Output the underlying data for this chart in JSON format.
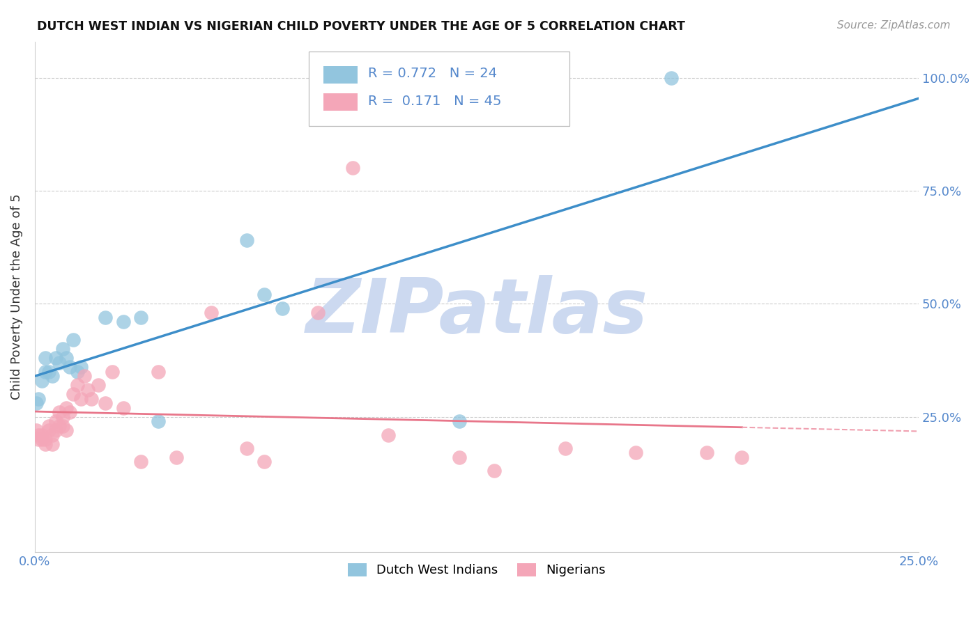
{
  "title": "DUTCH WEST INDIAN VS NIGERIAN CHILD POVERTY UNDER THE AGE OF 5 CORRELATION CHART",
  "source": "Source: ZipAtlas.com",
  "ylabel": "Child Poverty Under the Age of 5",
  "xlim": [
    0.0,
    0.25
  ],
  "ylim": [
    -0.05,
    1.08
  ],
  "background_color": "#ffffff",
  "grid_color": "#cccccc",
  "blue_scatter_color": "#92c5de",
  "pink_scatter_color": "#f4a6b8",
  "blue_line_color": "#3d8ec9",
  "pink_line_color": "#e8768a",
  "pink_dash_color": "#f0a0b0",
  "watermark_color": "#ccd9f0",
  "axis_label_color": "#5588cc",
  "R_blue": 0.772,
  "N_blue": 24,
  "R_pink": 0.171,
  "N_pink": 45,
  "dutch_x": [
    0.0005,
    0.001,
    0.002,
    0.003,
    0.003,
    0.004,
    0.005,
    0.006,
    0.007,
    0.008,
    0.009,
    0.01,
    0.011,
    0.012,
    0.013,
    0.02,
    0.025,
    0.03,
    0.035,
    0.06,
    0.065,
    0.07,
    0.12,
    0.18
  ],
  "dutch_y": [
    0.28,
    0.29,
    0.33,
    0.35,
    0.38,
    0.35,
    0.34,
    0.38,
    0.37,
    0.4,
    0.38,
    0.36,
    0.42,
    0.35,
    0.36,
    0.47,
    0.46,
    0.47,
    0.24,
    0.64,
    0.52,
    0.49,
    0.24,
    1.0
  ],
  "nigerian_x": [
    0.0005,
    0.001,
    0.001,
    0.002,
    0.002,
    0.003,
    0.003,
    0.004,
    0.004,
    0.005,
    0.005,
    0.006,
    0.006,
    0.007,
    0.007,
    0.008,
    0.008,
    0.009,
    0.009,
    0.01,
    0.011,
    0.012,
    0.013,
    0.014,
    0.015,
    0.016,
    0.018,
    0.02,
    0.022,
    0.025,
    0.03,
    0.035,
    0.04,
    0.05,
    0.06,
    0.065,
    0.08,
    0.09,
    0.1,
    0.12,
    0.13,
    0.15,
    0.17,
    0.19,
    0.2
  ],
  "nigerian_y": [
    0.22,
    0.2,
    0.21,
    0.21,
    0.2,
    0.2,
    0.19,
    0.22,
    0.23,
    0.21,
    0.19,
    0.22,
    0.24,
    0.23,
    0.26,
    0.25,
    0.23,
    0.27,
    0.22,
    0.26,
    0.3,
    0.32,
    0.29,
    0.34,
    0.31,
    0.29,
    0.32,
    0.28,
    0.35,
    0.27,
    0.15,
    0.35,
    0.16,
    0.48,
    0.18,
    0.15,
    0.48,
    0.8,
    0.21,
    0.16,
    0.13,
    0.18,
    0.17,
    0.17,
    0.16
  ]
}
